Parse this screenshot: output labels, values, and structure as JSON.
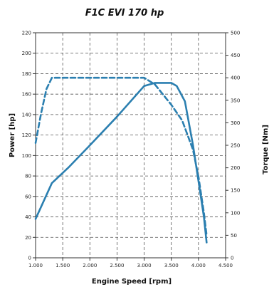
{
  "chart_data": {
    "type": "line",
    "title": "F1C EVI 170 hp",
    "xlabel": "Engine Speed [rpm]",
    "ylabel_left": "Power [hp]",
    "ylabel_right": "Torque [Nm]",
    "xlim": [
      1000,
      4500
    ],
    "ylim_left": [
      0,
      220
    ],
    "ylim_right": [
      0,
      500
    ],
    "x_ticks": [
      1000,
      1500,
      2000,
      2500,
      3000,
      3500,
      4000,
      4500
    ],
    "x_tick_labels": [
      "1.000",
      "1.500",
      "2.000",
      "2.500",
      "3.000",
      "3.500",
      "4.000",
      "4.500"
    ],
    "y_left_ticks": [
      0,
      20,
      40,
      60,
      80,
      100,
      120,
      140,
      160,
      180,
      200,
      220
    ],
    "y_left_tick_labels": [
      "0",
      "20",
      "40",
      "60",
      "80",
      "100",
      "120",
      "140",
      "160",
      "180",
      "200",
      "220"
    ],
    "y_right_ticks": [
      0,
      50,
      100,
      150,
      200,
      250,
      300,
      350,
      400,
      450,
      500
    ],
    "y_right_tick_labels": [
      "0",
      "50",
      "100",
      "150",
      "200",
      "250",
      "300",
      "350",
      "400",
      "450",
      "500"
    ],
    "grid": true,
    "series": [
      {
        "axis": "left",
        "style": "solid",
        "color": "#2b7fb0",
        "x": [
          1000,
          1300,
          1600,
          2000,
          2500,
          3000,
          3200,
          3500,
          3600,
          3750,
          3900,
          4000,
          4100,
          4150
        ],
        "y": [
          38,
          73,
          88,
          110,
          138,
          168,
          171,
          171,
          168,
          153,
          110,
          75,
          40,
          15
        ]
      },
      {
        "axis": "right",
        "style": "dashed",
        "color": "#2b7fb0",
        "x": [
          1000,
          1100,
          1200,
          1300,
          1500,
          2000,
          2500,
          3000,
          3200,
          3500,
          3700,
          3900,
          4000,
          4100,
          4150
        ],
        "y": [
          255,
          320,
          375,
          400,
          400,
          400,
          400,
          400,
          385,
          340,
          305,
          240,
          180,
          100,
          50
        ]
      }
    ]
  }
}
